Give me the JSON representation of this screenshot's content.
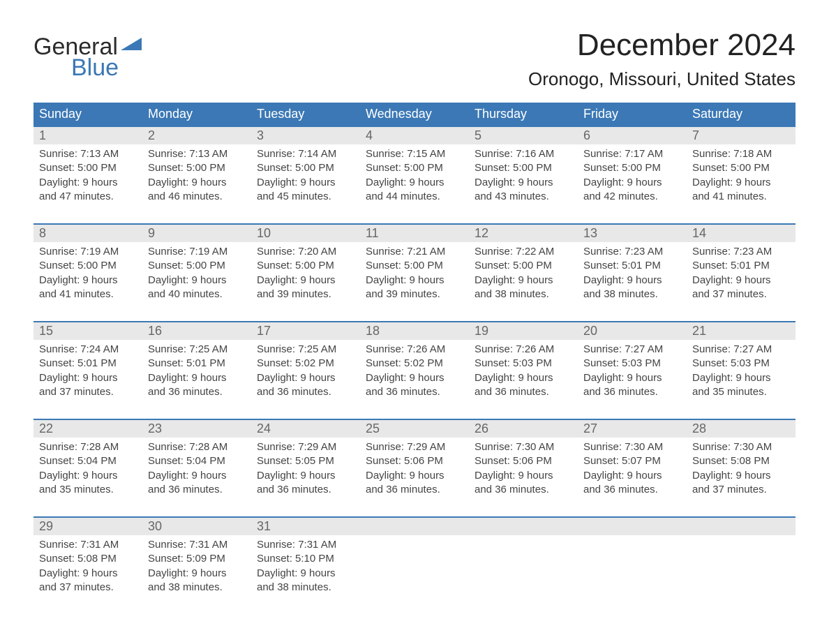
{
  "logo": {
    "line1": "General",
    "line2": "Blue",
    "icon_color": "#3b78b5"
  },
  "title": "December 2024",
  "location": "Oronogo, Missouri, United States",
  "colors": {
    "header_bg": "#3b78b5",
    "header_text": "#ffffff",
    "daynum_bg": "#e8e8e8",
    "daynum_text": "#666666",
    "body_text": "#444444",
    "row_border": "#3b78b5",
    "page_bg": "#ffffff"
  },
  "typography": {
    "title_fontsize": 44,
    "location_fontsize": 26,
    "weekday_fontsize": 18,
    "daynum_fontsize": 18,
    "body_fontsize": 15,
    "font_family": "Helvetica Neue, Helvetica, Arial, sans-serif"
  },
  "weekdays": [
    "Sunday",
    "Monday",
    "Tuesday",
    "Wednesday",
    "Thursday",
    "Friday",
    "Saturday"
  ],
  "weeks": [
    [
      {
        "day": "1",
        "sunrise": "7:13 AM",
        "sunset": "5:00 PM",
        "daylight": "9 hours and 47 minutes."
      },
      {
        "day": "2",
        "sunrise": "7:13 AM",
        "sunset": "5:00 PM",
        "daylight": "9 hours and 46 minutes."
      },
      {
        "day": "3",
        "sunrise": "7:14 AM",
        "sunset": "5:00 PM",
        "daylight": "9 hours and 45 minutes."
      },
      {
        "day": "4",
        "sunrise": "7:15 AM",
        "sunset": "5:00 PM",
        "daylight": "9 hours and 44 minutes."
      },
      {
        "day": "5",
        "sunrise": "7:16 AM",
        "sunset": "5:00 PM",
        "daylight": "9 hours and 43 minutes."
      },
      {
        "day": "6",
        "sunrise": "7:17 AM",
        "sunset": "5:00 PM",
        "daylight": "9 hours and 42 minutes."
      },
      {
        "day": "7",
        "sunrise": "7:18 AM",
        "sunset": "5:00 PM",
        "daylight": "9 hours and 41 minutes."
      }
    ],
    [
      {
        "day": "8",
        "sunrise": "7:19 AM",
        "sunset": "5:00 PM",
        "daylight": "9 hours and 41 minutes."
      },
      {
        "day": "9",
        "sunrise": "7:19 AM",
        "sunset": "5:00 PM",
        "daylight": "9 hours and 40 minutes."
      },
      {
        "day": "10",
        "sunrise": "7:20 AM",
        "sunset": "5:00 PM",
        "daylight": "9 hours and 39 minutes."
      },
      {
        "day": "11",
        "sunrise": "7:21 AM",
        "sunset": "5:00 PM",
        "daylight": "9 hours and 39 minutes."
      },
      {
        "day": "12",
        "sunrise": "7:22 AM",
        "sunset": "5:00 PM",
        "daylight": "9 hours and 38 minutes."
      },
      {
        "day": "13",
        "sunrise": "7:23 AM",
        "sunset": "5:01 PM",
        "daylight": "9 hours and 38 minutes."
      },
      {
        "day": "14",
        "sunrise": "7:23 AM",
        "sunset": "5:01 PM",
        "daylight": "9 hours and 37 minutes."
      }
    ],
    [
      {
        "day": "15",
        "sunrise": "7:24 AM",
        "sunset": "5:01 PM",
        "daylight": "9 hours and 37 minutes."
      },
      {
        "day": "16",
        "sunrise": "7:25 AM",
        "sunset": "5:01 PM",
        "daylight": "9 hours and 36 minutes."
      },
      {
        "day": "17",
        "sunrise": "7:25 AM",
        "sunset": "5:02 PM",
        "daylight": "9 hours and 36 minutes."
      },
      {
        "day": "18",
        "sunrise": "7:26 AM",
        "sunset": "5:02 PM",
        "daylight": "9 hours and 36 minutes."
      },
      {
        "day": "19",
        "sunrise": "7:26 AM",
        "sunset": "5:03 PM",
        "daylight": "9 hours and 36 minutes."
      },
      {
        "day": "20",
        "sunrise": "7:27 AM",
        "sunset": "5:03 PM",
        "daylight": "9 hours and 36 minutes."
      },
      {
        "day": "21",
        "sunrise": "7:27 AM",
        "sunset": "5:03 PM",
        "daylight": "9 hours and 35 minutes."
      }
    ],
    [
      {
        "day": "22",
        "sunrise": "7:28 AM",
        "sunset": "5:04 PM",
        "daylight": "9 hours and 35 minutes."
      },
      {
        "day": "23",
        "sunrise": "7:28 AM",
        "sunset": "5:04 PM",
        "daylight": "9 hours and 36 minutes."
      },
      {
        "day": "24",
        "sunrise": "7:29 AM",
        "sunset": "5:05 PM",
        "daylight": "9 hours and 36 minutes."
      },
      {
        "day": "25",
        "sunrise": "7:29 AM",
        "sunset": "5:06 PM",
        "daylight": "9 hours and 36 minutes."
      },
      {
        "day": "26",
        "sunrise": "7:30 AM",
        "sunset": "5:06 PM",
        "daylight": "9 hours and 36 minutes."
      },
      {
        "day": "27",
        "sunrise": "7:30 AM",
        "sunset": "5:07 PM",
        "daylight": "9 hours and 36 minutes."
      },
      {
        "day": "28",
        "sunrise": "7:30 AM",
        "sunset": "5:08 PM",
        "daylight": "9 hours and 37 minutes."
      }
    ],
    [
      {
        "day": "29",
        "sunrise": "7:31 AM",
        "sunset": "5:08 PM",
        "daylight": "9 hours and 37 minutes."
      },
      {
        "day": "30",
        "sunrise": "7:31 AM",
        "sunset": "5:09 PM",
        "daylight": "9 hours and 38 minutes."
      },
      {
        "day": "31",
        "sunrise": "7:31 AM",
        "sunset": "5:10 PM",
        "daylight": "9 hours and 38 minutes."
      },
      null,
      null,
      null,
      null
    ]
  ],
  "labels": {
    "sunrise_prefix": "Sunrise: ",
    "sunset_prefix": "Sunset: ",
    "daylight_prefix": "Daylight: "
  }
}
